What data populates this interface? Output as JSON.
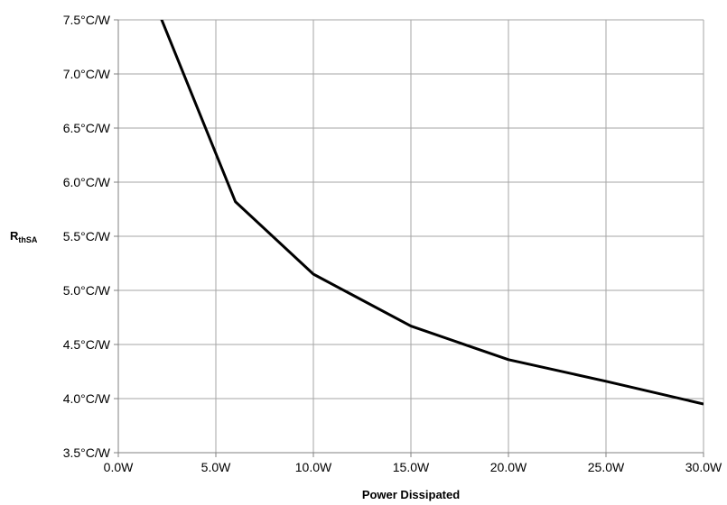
{
  "chart_data": {
    "type": "line",
    "title": "",
    "xlabel": "Power Dissipated",
    "ylabel": {
      "main": "R",
      "subscript": "thSA"
    },
    "xlim": [
      0,
      30
    ],
    "ylim": [
      3.5,
      7.5
    ],
    "x_ticks": [
      0,
      5,
      10,
      15,
      20,
      25,
      30
    ],
    "x_tick_labels": [
      "0.0W",
      "5.0W",
      "10.0W",
      "15.0W",
      "20.0W",
      "25.0W",
      "30.0W"
    ],
    "y_ticks": [
      3.5,
      4.0,
      4.5,
      5.0,
      5.5,
      6.0,
      6.5,
      7.0,
      7.5
    ],
    "y_tick_labels": [
      "3.5°C/W",
      "4.0°C/W",
      "4.5°C/W",
      "5.0°C/W",
      "5.5°C/W",
      "6.0°C/W",
      "6.5°C/W",
      "7.0°C/W",
      "7.5°C/W"
    ],
    "grid": true,
    "legend": "none",
    "line_color": "#000000",
    "grid_color": "#a6a6a6",
    "series": [
      {
        "x": [
          2.0,
          6.0,
          10.0,
          15.0,
          20.0,
          25.0,
          30.0
        ],
        "y": [
          7.6,
          5.82,
          5.15,
          4.67,
          4.36,
          4.16,
          3.95
        ]
      }
    ]
  }
}
